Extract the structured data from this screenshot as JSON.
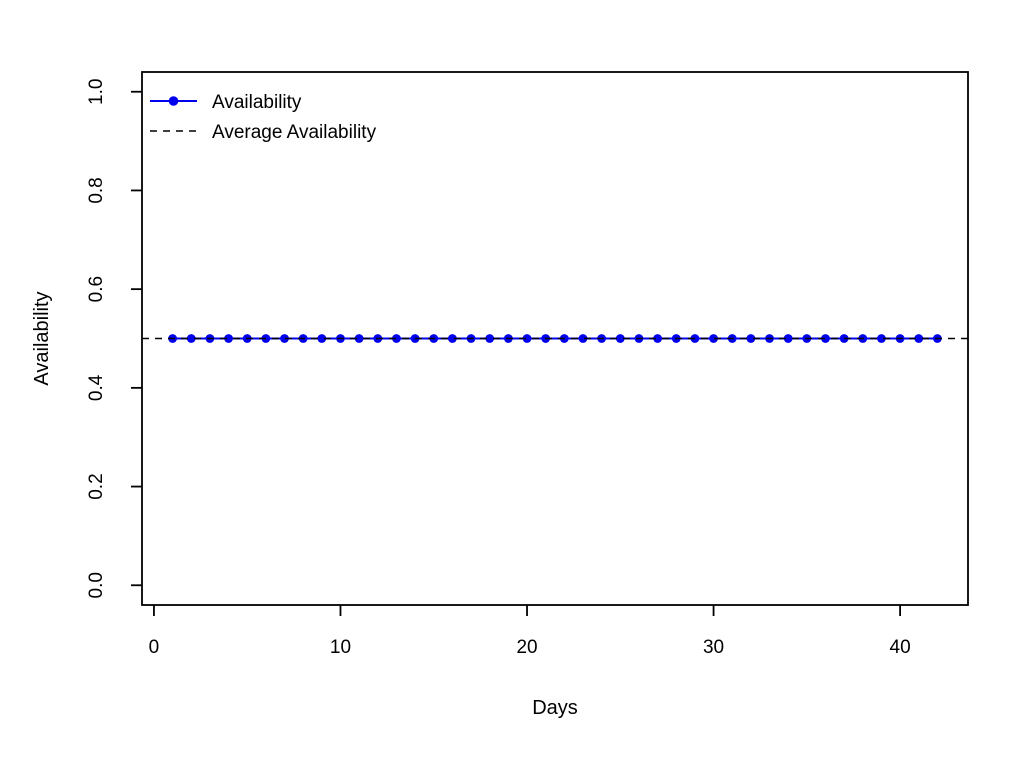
{
  "chart_data": {
    "type": "line",
    "title": "",
    "xlabel": "Days",
    "ylabel": "Availability",
    "x": [
      1,
      2,
      3,
      4,
      5,
      6,
      7,
      8,
      9,
      10,
      11,
      12,
      13,
      14,
      15,
      16,
      17,
      18,
      19,
      20,
      21,
      22,
      23,
      24,
      25,
      26,
      27,
      28,
      29,
      30,
      31,
      32,
      33,
      34,
      35,
      36,
      37,
      38,
      39,
      40,
      41,
      42
    ],
    "series": [
      {
        "name": "Availability",
        "type": "line-with-points",
        "color": "#0000ee",
        "marker": "filled-circle",
        "values": [
          0.5,
          0.5,
          0.5,
          0.5,
          0.5,
          0.5,
          0.5,
          0.5,
          0.5,
          0.5,
          0.5,
          0.5,
          0.5,
          0.5,
          0.5,
          0.5,
          0.5,
          0.5,
          0.5,
          0.5,
          0.5,
          0.5,
          0.5,
          0.5,
          0.5,
          0.5,
          0.5,
          0.5,
          0.5,
          0.5,
          0.5,
          0.5,
          0.5,
          0.5,
          0.5,
          0.5,
          0.5,
          0.5,
          0.5,
          0.5,
          0.5,
          0.5
        ]
      },
      {
        "name": "Average Availability",
        "type": "hline-dashed",
        "color": "#000000",
        "value": 0.5
      }
    ],
    "xlim": [
      -0.64,
      43.64
    ],
    "ylim": [
      -0.04,
      1.04
    ],
    "xticks": [
      0,
      10,
      20,
      30,
      40
    ],
    "xtick_labels": [
      "0",
      "10",
      "20",
      "30",
      "40"
    ],
    "yticks": [
      0.0,
      0.2,
      0.4,
      0.6,
      0.8,
      1.0
    ],
    "ytick_labels": [
      "0.0",
      "0.2",
      "0.4",
      "0.6",
      "0.8",
      "1.0"
    ],
    "grid": false,
    "legend_position": "top-left",
    "legend": {
      "items": [
        {
          "label": "Availability",
          "line": "solid",
          "marker": "filled-circle",
          "color": "#0000ee"
        },
        {
          "label": "Average Availability",
          "line": "dashed",
          "marker": "none",
          "color": "#000000"
        }
      ]
    },
    "colors": {
      "axis": "#000000",
      "background": "#ffffff",
      "series_blue": "#0000ee"
    }
  }
}
